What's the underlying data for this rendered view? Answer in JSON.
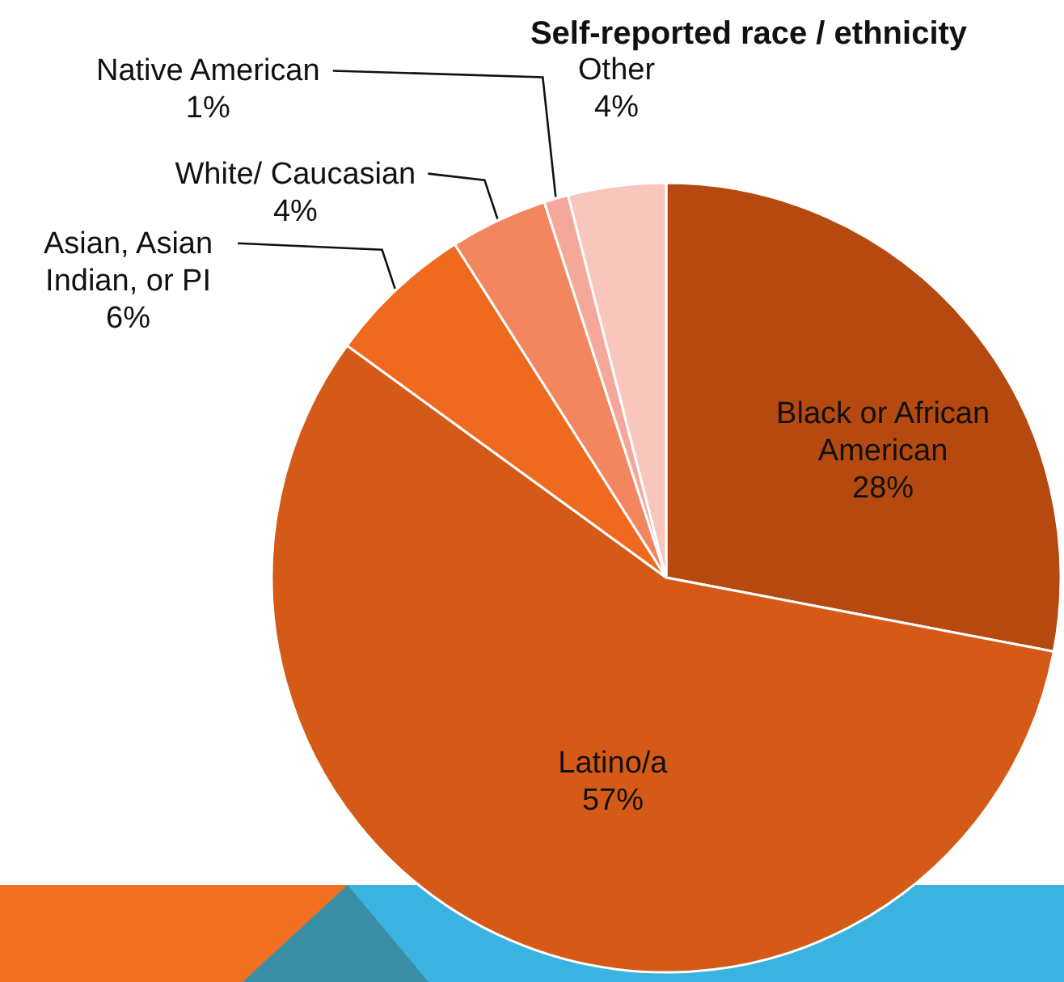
{
  "chart_data": {
    "type": "pie",
    "title": "Self-reported race / ethnicity",
    "categories": [
      "Black or African American",
      "Latino/a",
      "Asian, Asian Indian, or PI",
      "White/ Caucasian",
      "Native American",
      "Other"
    ],
    "values": [
      28,
      57,
      6,
      4,
      1,
      4
    ],
    "value_labels": [
      "28%",
      "57%",
      "6%",
      "4%",
      "1%",
      "4%"
    ],
    "colors": [
      "#b5490f",
      "#d55a17",
      "#ef6a1f",
      "#f4865f",
      "#f5a899",
      "#f8c6bd"
    ]
  }
}
